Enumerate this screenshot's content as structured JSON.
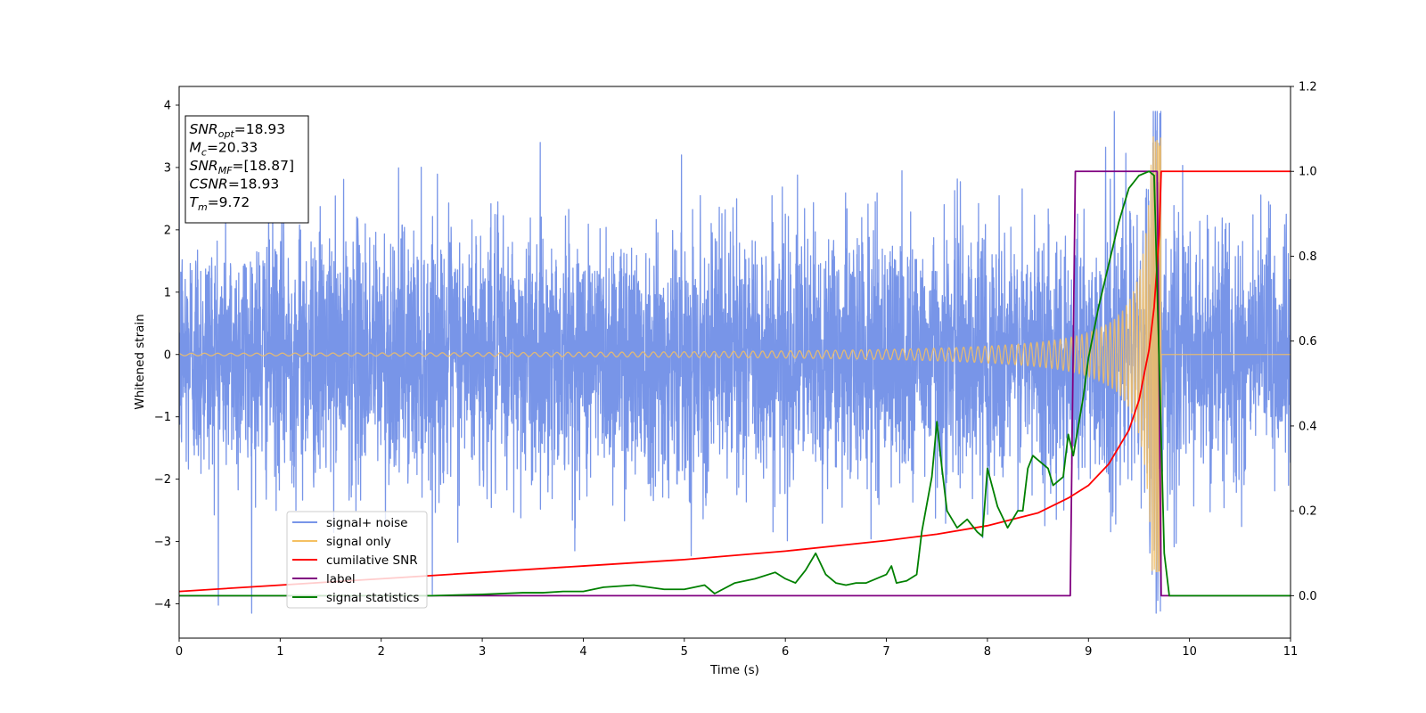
{
  "chart_data": {
    "type": "line",
    "xlabel": "Time (s)",
    "ylabel": "Whitened strain",
    "xlim": [
      0,
      11
    ],
    "ylim_left": [
      -4.55,
      4.3
    ],
    "ylim_right": [
      -0.1,
      1.2
    ],
    "x_ticks": [
      "0",
      "1",
      "2",
      "3",
      "4",
      "5",
      "6",
      "7",
      "8",
      "9",
      "10",
      "11"
    ],
    "y_ticks_left": [
      "−4",
      "−3",
      "−2",
      "−1",
      "0",
      "1",
      "2",
      "3",
      "4"
    ],
    "y_ticks_right": [
      "0.0",
      "0.2",
      "0.4",
      "0.6",
      "0.8",
      "1.0",
      "1.2"
    ],
    "annotation": {
      "lines": [
        {
          "sym": "SNR",
          "sub": "opt",
          "val": "=18.93"
        },
        {
          "sym": "M",
          "sub": "c",
          "val": "=20.33"
        },
        {
          "sym": "SNR",
          "sub": "MF",
          "val": "=[18.87]"
        },
        {
          "sym": "CSNR",
          "sub": "",
          "val": "=18.93"
        },
        {
          "sym": "T",
          "sub": "m",
          "val": "=9.72"
        }
      ]
    },
    "legend": {
      "placement": "lower-left",
      "entries": [
        {
          "label": "signal+ noise",
          "color": "#7895e8"
        },
        {
          "label": "signal only",
          "color": "#f5c062"
        },
        {
          "label": "cumilative SNR",
          "color": "#ff0000"
        },
        {
          "label": "label",
          "color": "#800080"
        },
        {
          "label": "signal statistics",
          "color": "#008000"
        }
      ]
    },
    "series": [
      {
        "name": "signal+ noise",
        "axis": "left",
        "color": "#7895e8",
        "description_stats": {
          "std": 1.0,
          "min": -4.15,
          "max": 3.9,
          "x_range": [
            0,
            11
          ]
        }
      },
      {
        "name": "signal only",
        "axis": "left",
        "color": "#f5c062",
        "chirp": {
          "amplitude_start": 0.02,
          "amplitude_peak": 3.5,
          "t_merger": 9.72,
          "t_end": 11
        }
      },
      {
        "name": "cumilative SNR",
        "axis": "right",
        "color": "#ff0000",
        "x": [
          0,
          1,
          2,
          3,
          4,
          5,
          6,
          7,
          7.5,
          8,
          8.5,
          8.8,
          9,
          9.2,
          9.4,
          9.5,
          9.6,
          9.65,
          9.7,
          9.72,
          9.75,
          11
        ],
        "y": [
          0.01,
          0.025,
          0.04,
          0.055,
          0.07,
          0.085,
          0.105,
          0.13,
          0.145,
          0.165,
          0.195,
          0.23,
          0.26,
          0.31,
          0.39,
          0.46,
          0.58,
          0.68,
          0.85,
          1.0,
          1.0,
          1.0
        ]
      },
      {
        "name": "label",
        "axis": "right",
        "color": "#800080",
        "x": [
          0,
          8.82,
          8.87,
          9.68,
          9.72,
          9.76,
          11
        ],
        "y": [
          0.0,
          0.0,
          1.0,
          1.0,
          0.0,
          0.0,
          0.0
        ]
      },
      {
        "name": "signal statistics",
        "axis": "right",
        "color": "#008000",
        "x": [
          0,
          0.5,
          1,
          1.5,
          2,
          2.5,
          3,
          3.4,
          3.6,
          3.8,
          4,
          4.2,
          4.5,
          4.8,
          5,
          5.2,
          5.3,
          5.5,
          5.7,
          5.9,
          6,
          6.1,
          6.2,
          6.3,
          6.4,
          6.5,
          6.6,
          6.7,
          6.8,
          6.9,
          7.0,
          7.05,
          7.1,
          7.2,
          7.3,
          7.35,
          7.45,
          7.5,
          7.55,
          7.6,
          7.7,
          7.8,
          7.9,
          7.95,
          8.0,
          8.1,
          8.2,
          8.3,
          8.35,
          8.4,
          8.45,
          8.5,
          8.55,
          8.6,
          8.65,
          8.7,
          8.75,
          8.8,
          8.85,
          8.9,
          8.95,
          9.0,
          9.1,
          9.2,
          9.3,
          9.4,
          9.5,
          9.6,
          9.65,
          9.7,
          9.75,
          9.8,
          10,
          11
        ],
        "y": [
          0.0,
          0.0,
          0.0,
          0.0,
          0.0,
          0.0,
          0.003,
          0.007,
          0.007,
          0.01,
          0.01,
          0.02,
          0.025,
          0.015,
          0.015,
          0.025,
          0.005,
          0.03,
          0.04,
          0.055,
          0.04,
          0.03,
          0.06,
          0.1,
          0.05,
          0.03,
          0.025,
          0.03,
          0.03,
          0.04,
          0.05,
          0.07,
          0.03,
          0.035,
          0.05,
          0.15,
          0.28,
          0.41,
          0.3,
          0.2,
          0.16,
          0.18,
          0.15,
          0.14,
          0.3,
          0.21,
          0.16,
          0.2,
          0.2,
          0.3,
          0.33,
          0.32,
          0.31,
          0.3,
          0.26,
          0.27,
          0.28,
          0.38,
          0.33,
          0.4,
          0.47,
          0.56,
          0.68,
          0.78,
          0.88,
          0.96,
          0.99,
          1.0,
          0.99,
          0.55,
          0.1,
          0.0,
          0.0,
          0.0
        ]
      }
    ]
  }
}
